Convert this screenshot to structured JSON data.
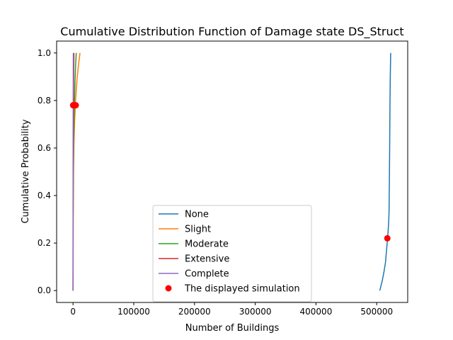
{
  "chart_data": {
    "type": "line",
    "title": "Cumulative Distribution Function of Damage state DS_Struct",
    "xlabel": "Number of Buildings",
    "ylabel": "Cumulative Probability",
    "xlim": [
      -27000,
      551000
    ],
    "ylim": [
      -0.05,
      1.05
    ],
    "xticks": [
      0,
      100000,
      200000,
      300000,
      400000,
      500000
    ],
    "yticks": [
      0.0,
      0.2,
      0.4,
      0.6,
      0.8,
      1.0
    ],
    "ytick_labels": [
      "0.0",
      "0.2",
      "0.4",
      "0.6",
      "0.8",
      "1.0"
    ],
    "grid": false,
    "legend_position": "lower center",
    "series": [
      {
        "name": "None",
        "color": "#1f77b4",
        "x": [
          505000,
          509000,
          512000,
          514500,
          516500,
          518000,
          519500,
          520300,
          520800,
          521300,
          521800,
          522300,
          523000
        ],
        "y": [
          0.0,
          0.04,
          0.08,
          0.12,
          0.18,
          0.22,
          0.28,
          0.33,
          0.45,
          0.6,
          0.78,
          0.9,
          1.0
        ]
      },
      {
        "name": "Slight",
        "color": "#ff7f0e",
        "x": [
          0,
          300,
          800,
          1500,
          2500,
          3800,
          5200,
          7000,
          9000,
          11500
        ],
        "y": [
          0.0,
          0.3,
          0.5,
          0.62,
          0.7,
          0.78,
          0.84,
          0.9,
          0.95,
          1.0
        ]
      },
      {
        "name": "Moderate",
        "color": "#2ca02c",
        "x": [
          0,
          200,
          500,
          1000,
          1600,
          2400,
          3300,
          4300,
          5300
        ],
        "y": [
          0.0,
          0.3,
          0.5,
          0.62,
          0.72,
          0.8,
          0.88,
          0.95,
          1.0
        ]
      },
      {
        "name": "Extensive",
        "color": "#d62728",
        "x": [
          0,
          100,
          250,
          450,
          700,
          1000,
          1300,
          1500
        ],
        "y": [
          0.0,
          0.3,
          0.5,
          0.65,
          0.78,
          0.88,
          0.95,
          1.0
        ]
      },
      {
        "name": "Complete",
        "color": "#9467bd",
        "x": [
          0,
          30,
          80,
          150,
          250,
          380,
          500
        ],
        "y": [
          0.0,
          0.3,
          0.5,
          0.65,
          0.8,
          0.92,
          1.0
        ]
      }
    ],
    "highlight": {
      "name": "The displayed simulation",
      "color": "#ff0000",
      "points": [
        {
          "x": 517500,
          "y": 0.22
        },
        {
          "x": 4500,
          "y": 0.78
        },
        {
          "x": 2500,
          "y": 0.78
        },
        {
          "x": 700,
          "y": 0.78
        },
        {
          "x": 250,
          "y": 0.78
        }
      ]
    }
  }
}
